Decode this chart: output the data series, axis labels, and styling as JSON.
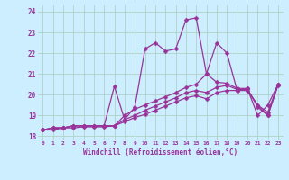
{
  "title": "",
  "xlabel": "Windchill (Refroidissement éolien,°C)",
  "ylabel": "",
  "bg_color": "#cceeff",
  "line_color": "#993399",
  "grid_color": "#aaccbb",
  "xlim": [
    -0.5,
    23.5
  ],
  "ylim": [
    17.8,
    24.3
  ],
  "yticks": [
    18,
    19,
    20,
    21,
    22,
    23,
    24
  ],
  "xticks": [
    0,
    1,
    2,
    3,
    4,
    5,
    6,
    7,
    8,
    9,
    10,
    11,
    12,
    13,
    14,
    15,
    16,
    17,
    18,
    19,
    20,
    21,
    22,
    23
  ],
  "line1_x": [
    0,
    1,
    2,
    3,
    4,
    5,
    6,
    7,
    8,
    9,
    10,
    11,
    12,
    13,
    14,
    15,
    16,
    17,
    18,
    19,
    20,
    21,
    22,
    23
  ],
  "line1_y": [
    18.3,
    18.4,
    18.4,
    18.5,
    18.5,
    18.5,
    18.5,
    20.4,
    18.8,
    19.4,
    22.2,
    22.5,
    22.1,
    22.2,
    23.6,
    23.7,
    21.0,
    22.5,
    22.0,
    20.2,
    20.3,
    19.0,
    19.5,
    20.5
  ],
  "line2_x": [
    0,
    1,
    2,
    3,
    4,
    5,
    6,
    7,
    8,
    9,
    10,
    11,
    12,
    13,
    14,
    15,
    16,
    17,
    18,
    19,
    20,
    21,
    22,
    23
  ],
  "line2_y": [
    18.3,
    18.4,
    18.4,
    18.5,
    18.5,
    18.5,
    18.5,
    18.5,
    19.0,
    19.3,
    19.5,
    19.7,
    19.9,
    20.1,
    20.35,
    20.5,
    21.0,
    20.6,
    20.55,
    20.3,
    20.3,
    19.4,
    19.0,
    20.5
  ],
  "line3_x": [
    0,
    1,
    2,
    3,
    4,
    5,
    6,
    7,
    8,
    9,
    10,
    11,
    12,
    13,
    14,
    15,
    16,
    17,
    18,
    19,
    20,
    21,
    22,
    23
  ],
  "line3_y": [
    18.3,
    18.4,
    18.4,
    18.5,
    18.5,
    18.5,
    18.5,
    18.5,
    18.8,
    19.0,
    19.25,
    19.45,
    19.65,
    19.85,
    20.1,
    20.2,
    20.1,
    20.35,
    20.45,
    20.25,
    20.25,
    19.5,
    19.15,
    20.5
  ],
  "line4_x": [
    0,
    1,
    2,
    3,
    4,
    5,
    6,
    7,
    8,
    9,
    10,
    11,
    12,
    13,
    14,
    15,
    16,
    17,
    18,
    19,
    20,
    21,
    22,
    23
  ],
  "line4_y": [
    18.3,
    18.3,
    18.4,
    18.4,
    18.45,
    18.45,
    18.45,
    18.5,
    18.7,
    18.9,
    19.05,
    19.25,
    19.45,
    19.65,
    19.85,
    19.95,
    19.8,
    20.1,
    20.2,
    20.2,
    20.2,
    19.5,
    19.0,
    20.45
  ]
}
